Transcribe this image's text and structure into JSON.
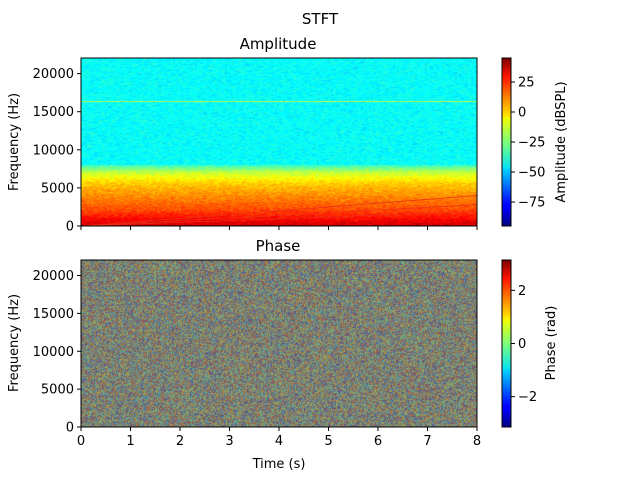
{
  "chart_data": {
    "suptitle": "STFT",
    "xlabel": "Time (s)",
    "xlim": [
      0,
      8
    ],
    "xticks": [
      0,
      1,
      2,
      3,
      4,
      5,
      6,
      7,
      8
    ],
    "panels": [
      {
        "title": "Amplitude",
        "type": "heatmap",
        "colormap": "jet",
        "ylabel": "Frequency (Hz)",
        "ylim": [
          0,
          22050
        ],
        "yticks": [
          0,
          5000,
          10000,
          15000,
          20000
        ],
        "colorbar": {
          "label": "Amplitude (dBSPL)",
          "range": [
            -95,
            45
          ],
          "ticks": [
            25,
            0,
            -25,
            -50,
            -75
          ]
        },
        "features": {
          "background_level_dB": -42,
          "low_freq_band": [
            {
              "freq_hz": 0,
              "level_dB": 35
            },
            {
              "freq_hz": 2000,
              "level_dB": 18
            },
            {
              "freq_hz": 4000,
              "level_dB": 8
            },
            {
              "freq_hz": 5500,
              "level_dB": 0
            },
            {
              "freq_hz": 7000,
              "level_dB": -15
            },
            {
              "freq_hz": 8000,
              "level_dB": -35
            }
          ],
          "tone_freq_hz": 16300,
          "chirps": [
            {
              "start_hz": 0,
              "end_hz": 4000
            },
            {
              "start_hz": 0,
              "end_hz": 2800
            },
            {
              "start_hz": 0,
              "end_hz": 1900
            }
          ]
        }
      },
      {
        "title": "Phase",
        "type": "heatmap",
        "colormap": "jet",
        "ylabel": "Frequency (Hz)",
        "ylim": [
          0,
          22050
        ],
        "yticks": [
          0,
          5000,
          10000,
          15000,
          20000
        ],
        "colorbar": {
          "label": "Phase (rad)",
          "range": [
            -3.1416,
            3.1416
          ],
          "ticks": [
            2,
            0,
            -2
          ]
        },
        "features": {
          "distribution": "uniform random noise"
        }
      }
    ]
  }
}
